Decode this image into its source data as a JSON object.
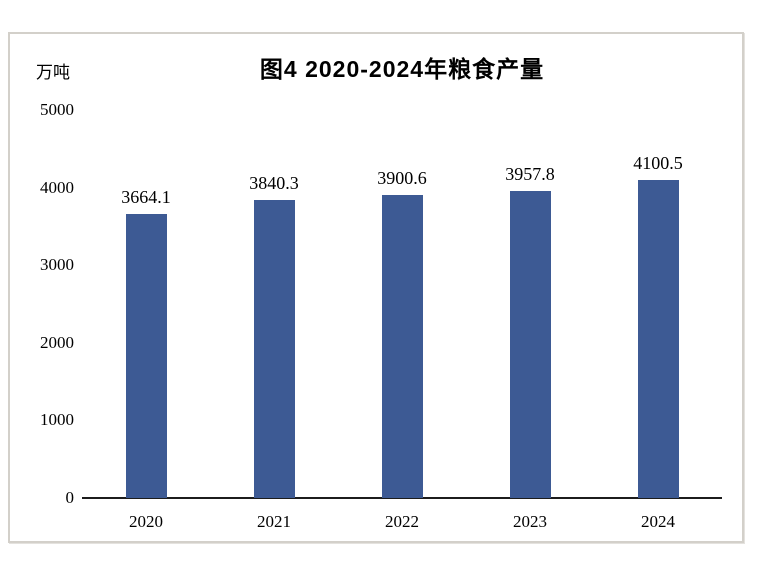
{
  "page": {
    "background_color": "#ffffff",
    "frame_border_color": "#d3d0ca"
  },
  "chart_data": {
    "type": "bar",
    "title": "图4 2020-2024年粮食产量",
    "unit_label": "万吨",
    "categories": [
      "2020",
      "2021",
      "2022",
      "2023",
      "2024"
    ],
    "values": [
      3664.1,
      3840.3,
      3900.6,
      3957.8,
      4100.5
    ],
    "value_labels": [
      "3664.1",
      "3840.3",
      "3900.6",
      "3957.8",
      "4100.5"
    ],
    "xlabel": "",
    "ylabel": "万吨",
    "ylim": [
      0,
      5000
    ],
    "y_ticks": [
      5000,
      4000,
      3000,
      2000,
      1000,
      0
    ],
    "grid": false,
    "legend_position": "none",
    "bar_color": "#3d5a94",
    "axis_line_color": "#1c1c1c",
    "text_color": "#000000"
  }
}
